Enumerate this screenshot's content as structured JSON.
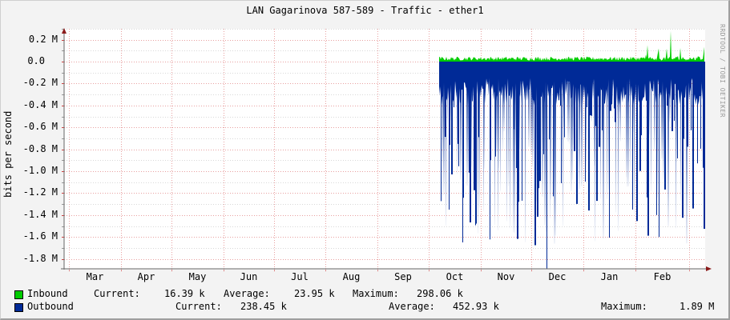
{
  "title": "LAN Gagarinova 587-589 - Traffic - ether1",
  "watermark": "RRDTOOL / TOBI OETIKER",
  "colors": {
    "inbound": "#00cc00",
    "outbound": "#002a97",
    "background": "#f3f3f3",
    "plot_background": "#ffffff",
    "grid_major": "#e8a0a0",
    "grid_minor": "#d8d8d8",
    "axis": "#666666",
    "arrow": "#8b1a1a"
  },
  "chart_data": {
    "type": "area",
    "title": "LAN Gagarinova 587-589 - Traffic - ether1",
    "xlabel": "",
    "ylabel": "bits per second",
    "yticks": [
      "0.2 M",
      "0.0",
      "-0.2 M",
      "-0.4 M",
      "-0.6 M",
      "-0.8 M",
      "-1.0 M",
      "-1.2 M",
      "-1.4 M",
      "-1.6 M",
      "-1.8 M"
    ],
    "ytick_values": [
      0.2,
      0.0,
      -0.2,
      -0.4,
      -0.6,
      -0.8,
      -1.0,
      -1.2,
      -1.4,
      -1.6,
      -1.8
    ],
    "ylim": [
      -1.9,
      0.3
    ],
    "xticks": [
      "Mar",
      "Apr",
      "May",
      "Jun",
      "Jul",
      "Aug",
      "Sep",
      "Oct",
      "Nov",
      "Dec",
      "Jan",
      "Feb"
    ],
    "grid": true,
    "legend_position": "bottom",
    "series": [
      {
        "name": "Inbound",
        "color": "#00cc00",
        "direction": "positive",
        "current": "16.39 k",
        "average": "23.95 k",
        "maximum": "298.06 k",
        "description": "Small positive traffic from early Oct to end of Feb, mostly ~0.02-0.05 M with spikes up to ~0.28 M in Feb"
      },
      {
        "name": "Outbound",
        "color": "#002a97",
        "direction": "negative (mirrored)",
        "current": "238.45 k",
        "average": "452.93 k",
        "maximum": "1.89 M",
        "description": "Dense negative traffic from early Oct to end of Feb, baseline ~-0.2 to -0.4 M with frequent spikes down to -1.2..-1.8 M, peak -1.89 M in late Nov"
      }
    ],
    "data_start_month": "Oct",
    "data_end_month": "Feb"
  },
  "legend": {
    "inbound": {
      "label": "Inbound",
      "current_label": "Current:",
      "current": "16.39 k",
      "average_label": "Average:",
      "average": "23.95 k",
      "maximum_label": "Maximum:",
      "maximum": "298.06 k"
    },
    "outbound": {
      "label": "Outbound",
      "current_label": "Current:",
      "current": "238.45 k",
      "average_label": "Average:",
      "average": "452.93 k",
      "maximum_label": "Maximum:",
      "maximum": "1.89 M"
    }
  }
}
